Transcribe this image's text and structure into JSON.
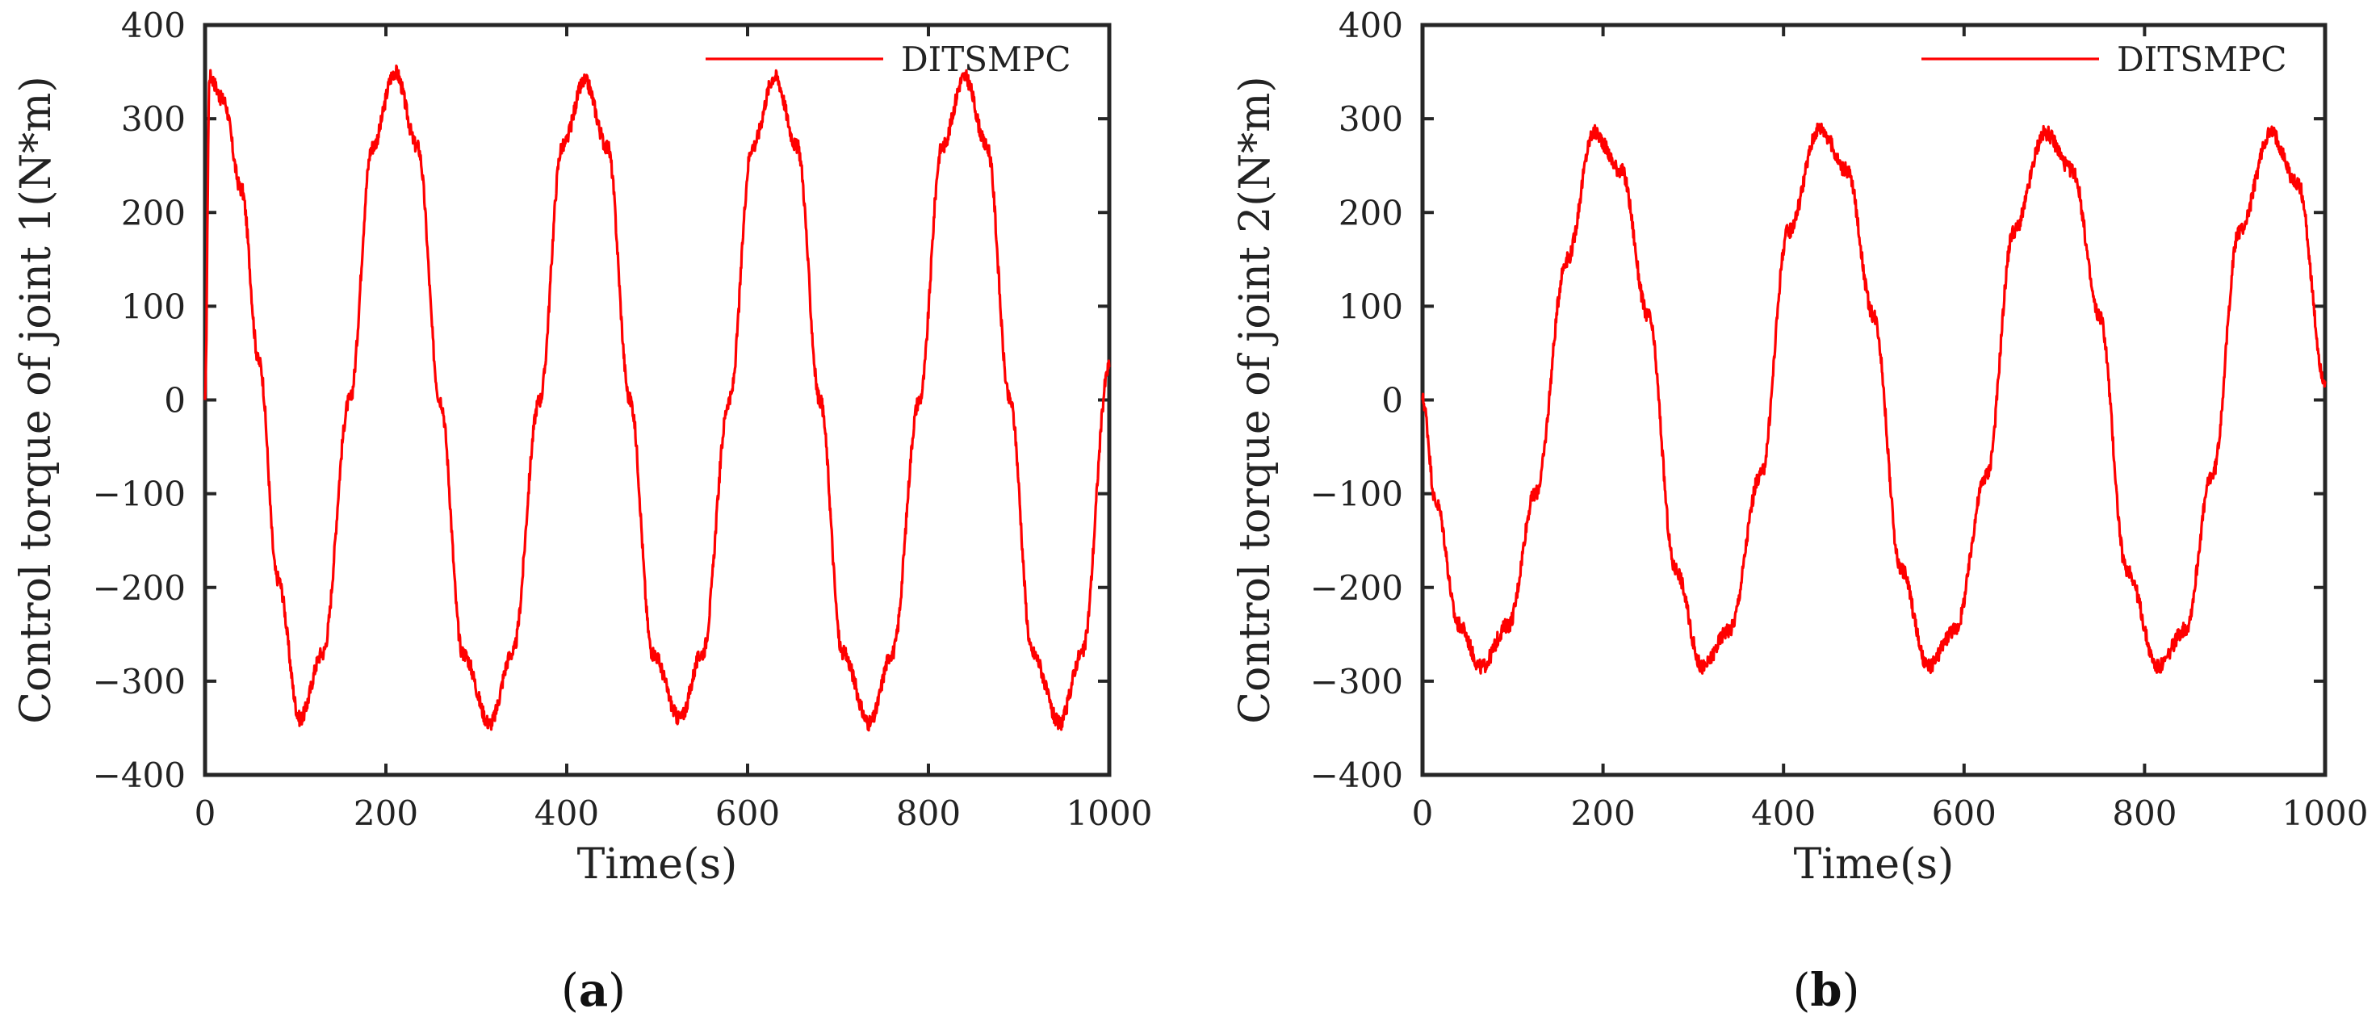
{
  "chart_data": [
    {
      "type": "line",
      "caption_letter": "a",
      "xlabel": "Time(s)",
      "ylabel": "Control torque of joint 1(N*m)",
      "xlim": [
        0,
        1000
      ],
      "ylim": [
        -400,
        400
      ],
      "xticks": [
        0,
        200,
        400,
        600,
        800,
        1000
      ],
      "yticks": [
        -400,
        -300,
        -200,
        -100,
        0,
        100,
        200,
        300,
        400
      ],
      "xtick_labels": [
        "0",
        "200",
        "400",
        "600",
        "800",
        "1000"
      ],
      "ytick_labels": [
        "−400",
        "−300",
        "−200",
        "−100",
        "0",
        "100",
        "200",
        "300",
        "400"
      ],
      "legend": "DITSMPC",
      "series": [
        {
          "name": "DITSMPC",
          "color": "#ff0000",
          "x": [
            0,
            5,
            20,
            40,
            60,
            80,
            105,
            130,
            160,
            185,
            210,
            235,
            260,
            285,
            315,
            340,
            370,
            395,
            420,
            445,
            470,
            495,
            525,
            550,
            580,
            605,
            630,
            655,
            680,
            705,
            735,
            760,
            790,
            815,
            840,
            865,
            890,
            915,
            945,
            970,
            1000
          ],
          "values": [
            0,
            345,
            320,
            225,
            40,
            -190,
            -340,
            -270,
            0,
            270,
            350,
            270,
            0,
            -270,
            -345,
            -270,
            0,
            270,
            340,
            270,
            0,
            -270,
            -340,
            -270,
            0,
            270,
            345,
            270,
            0,
            -270,
            -345,
            -270,
            0,
            270,
            345,
            270,
            0,
            -270,
            -345,
            -270,
            35
          ]
        }
      ]
    },
    {
      "type": "line",
      "caption_letter": "b",
      "xlabel": "Time(s)",
      "ylabel": "Control torque of joint 2(N*m)",
      "xlim": [
        0,
        1000
      ],
      "ylim": [
        -400,
        400
      ],
      "xticks": [
        0,
        200,
        400,
        600,
        800,
        1000
      ],
      "yticks": [
        -400,
        -300,
        -200,
        -100,
        0,
        100,
        200,
        300,
        400
      ],
      "xtick_labels": [
        "0",
        "200",
        "400",
        "600",
        "800",
        "1000"
      ],
      "ytick_labels": [
        "−400",
        "−300",
        "−200",
        "−100",
        "0",
        "100",
        "200",
        "300",
        "400"
      ],
      "legend": "DITSMPC",
      "series": [
        {
          "name": "DITSMPC",
          "color": "#ff0000",
          "x": [
            0,
            15,
            40,
            65,
            95,
            125,
            160,
            190,
            220,
            250,
            280,
            310,
            340,
            375,
            405,
            440,
            470,
            500,
            530,
            560,
            590,
            625,
            655,
            690,
            720,
            750,
            780,
            815,
            845,
            875,
            905,
            940,
            970,
            1000
          ],
          "values": [
            0,
            -110,
            -240,
            -285,
            -240,
            -100,
            150,
            285,
            245,
            90,
            -180,
            -285,
            -245,
            -80,
            180,
            290,
            245,
            90,
            -180,
            -285,
            -245,
            -80,
            180,
            285,
            245,
            90,
            -180,
            -285,
            -245,
            -80,
            180,
            285,
            230,
            20
          ]
        }
      ]
    }
  ]
}
